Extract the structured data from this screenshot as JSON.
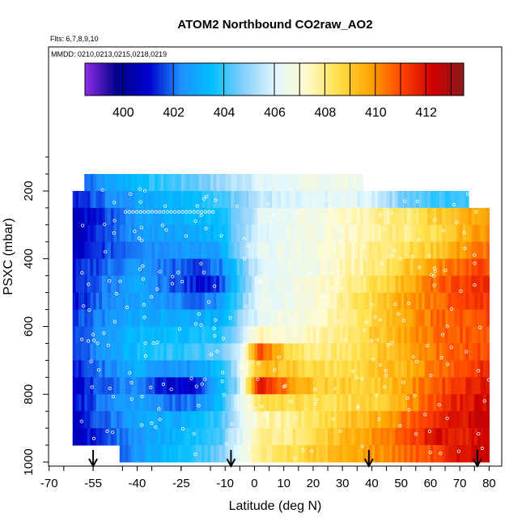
{
  "chart_data": {
    "type": "heatmap",
    "title": "ATOM2 Northbound CO2raw_AO2",
    "subtitle_flights": "Flts: 6,7,8,9,10",
    "subtitle_dates": "MMDD: 0210,0213,0215,0218,0219",
    "xlabel": "Latitude (deg N)",
    "ylabel": "PSXC (mbar)",
    "xlim": [
      -70,
      80
    ],
    "ylim": [
      1000,
      100
    ],
    "x_tick_labels": [
      "-70",
      "-55",
      "-40",
      "-25",
      "-10",
      "0",
      "10",
      "20",
      "30",
      "40",
      "50",
      "60",
      "70",
      "80"
    ],
    "x_tick_values": [
      -70,
      -55,
      -40,
      -25,
      -10,
      0,
      10,
      20,
      30,
      40,
      50,
      60,
      70,
      80
    ],
    "y_tick_labels": [
      "200",
      "400",
      "600",
      "800",
      "1000"
    ],
    "y_tick_values": [
      200,
      400,
      600,
      800,
      1000
    ],
    "colorbar": {
      "range": [
        398.5,
        413.5
      ],
      "tick_labels": [
        "400",
        "402",
        "404",
        "406",
        "408",
        "410",
        "412"
      ],
      "tick_values": [
        400,
        402,
        404,
        406,
        408,
        410,
        412
      ],
      "colors": [
        "#8a2be2",
        "#00008b",
        "#0000cd",
        "#1e90ff",
        "#00bfff",
        "#87cefa",
        "#e0f7ff",
        "#fffacd",
        "#ffe04a",
        "#ffa500",
        "#ff4500",
        "#cd0000",
        "#8b1a1a"
      ]
    },
    "profile_markers_lat": [
      -55,
      -8,
      39,
      76
    ],
    "pressure_levels": [
      175,
      225,
      275,
      325,
      375,
      425,
      475,
      525,
      575,
      625,
      675,
      725,
      775,
      825,
      875,
      925,
      975
    ],
    "lat_nodes": [
      -62,
      -52,
      -40,
      -30,
      -20,
      -12,
      -6,
      2,
      12,
      22,
      32,
      42,
      52,
      62,
      72,
      80
    ],
    "field_values": [
      [
        401.5,
        402.5,
        403.5,
        404.0,
        404.5,
        405.0,
        405.5,
        406.0,
        406.3,
        406.5,
        406.6,
        406.7,
        406.8,
        406.8,
        406.8,
        406.8
      ],
      [
        401.0,
        402.0,
        402.8,
        403.3,
        403.6,
        404.0,
        404.8,
        405.5,
        405.8,
        406.0,
        406.2,
        405.8,
        404.5,
        404.0,
        404.2,
        404.3
      ],
      [
        400.5,
        401.5,
        402.5,
        403.0,
        403.3,
        403.5,
        404.5,
        406.0,
        406.5,
        406.8,
        407.5,
        407.8,
        408.0,
        409.0,
        409.5,
        410.0
      ],
      [
        400.5,
        401.5,
        402.5,
        402.8,
        403.0,
        403.2,
        404.5,
        406.0,
        406.5,
        406.8,
        407.3,
        407.8,
        408.0,
        408.5,
        409.5,
        410.0
      ],
      [
        400.5,
        401.5,
        402.3,
        402.5,
        402.5,
        402.8,
        404.5,
        406.2,
        406.5,
        406.8,
        407.5,
        408.0,
        408.5,
        409.0,
        410.0,
        410.5
      ],
      [
        401.0,
        401.8,
        402.5,
        402.0,
        401.5,
        402.0,
        404.0,
        406.0,
        406.5,
        406.8,
        407.5,
        408.0,
        409.0,
        410.0,
        410.8,
        411.0
      ],
      [
        401.0,
        402.0,
        402.8,
        402.0,
        401.2,
        401.5,
        403.5,
        406.2,
        406.6,
        407.0,
        407.8,
        408.5,
        409.5,
        410.5,
        411.2,
        411.5
      ],
      [
        401.0,
        402.0,
        402.8,
        402.5,
        402.0,
        402.3,
        404.0,
        406.3,
        406.6,
        407.0,
        408.0,
        408.8,
        409.8,
        410.5,
        411.0,
        411.2
      ],
      [
        401.5,
        402.3,
        403.0,
        403.0,
        403.0,
        403.2,
        404.5,
        406.3,
        406.8,
        407.2,
        408.0,
        408.8,
        409.8,
        410.5,
        410.8,
        411.0
      ],
      [
        401.5,
        402.5,
        403.3,
        403.5,
        403.5,
        403.8,
        405.0,
        407.5,
        407.0,
        407.5,
        408.2,
        409.0,
        409.8,
        410.5,
        410.8,
        410.8
      ],
      [
        401.5,
        402.5,
        403.5,
        403.8,
        404.0,
        404.3,
        405.5,
        411.0,
        408.5,
        407.8,
        408.3,
        409.0,
        409.5,
        410.5,
        410.8,
        411.0
      ],
      [
        401.0,
        402.0,
        403.0,
        402.5,
        402.5,
        403.5,
        405.5,
        409.5,
        409.0,
        408.5,
        408.5,
        409.0,
        409.5,
        410.5,
        411.0,
        411.5
      ],
      [
        400.8,
        401.8,
        402.5,
        401.0,
        401.0,
        403.0,
        405.0,
        412.0,
        410.0,
        409.0,
        408.8,
        409.0,
        409.8,
        410.8,
        411.5,
        412.0
      ],
      [
        401.0,
        402.0,
        402.8,
        402.0,
        402.0,
        403.5,
        405.5,
        408.5,
        408.5,
        408.5,
        408.5,
        408.8,
        409.8,
        411.0,
        411.8,
        412.2
      ],
      [
        400.8,
        401.8,
        402.8,
        403.0,
        403.3,
        404.0,
        405.5,
        407.5,
        407.8,
        408.3,
        409.0,
        409.5,
        410.5,
        411.5,
        412.0,
        412.5
      ],
      [
        400.5,
        401.5,
        402.5,
        403.0,
        403.5,
        404.2,
        405.8,
        407.8,
        408.0,
        408.5,
        409.5,
        410.0,
        410.8,
        412.0,
        411.5,
        412.5
      ],
      [
        400.5,
        401.5,
        402.5,
        403.3,
        403.8,
        404.5,
        406.0,
        408.0,
        408.5,
        409.0,
        409.5,
        410.0,
        410.5,
        411.0,
        412.0,
        412.5
      ]
    ],
    "row_lat_extent": [
      [
        -58,
        37
      ],
      [
        -62,
        73
      ],
      [
        -62,
        80
      ],
      [
        -62,
        80
      ],
      [
        -62,
        80
      ],
      [
        -62,
        80
      ],
      [
        -62,
        80
      ],
      [
        -62,
        80
      ],
      [
        -62,
        80
      ],
      [
        -62,
        80
      ],
      [
        -62,
        80
      ],
      [
        -62,
        80
      ],
      [
        -62,
        80
      ],
      [
        -62,
        80
      ],
      [
        -62,
        80
      ],
      [
        -62,
        80
      ],
      [
        -62,
        80
      ]
    ],
    "surface_gap_lat": [
      -62,
      -46
    ]
  }
}
